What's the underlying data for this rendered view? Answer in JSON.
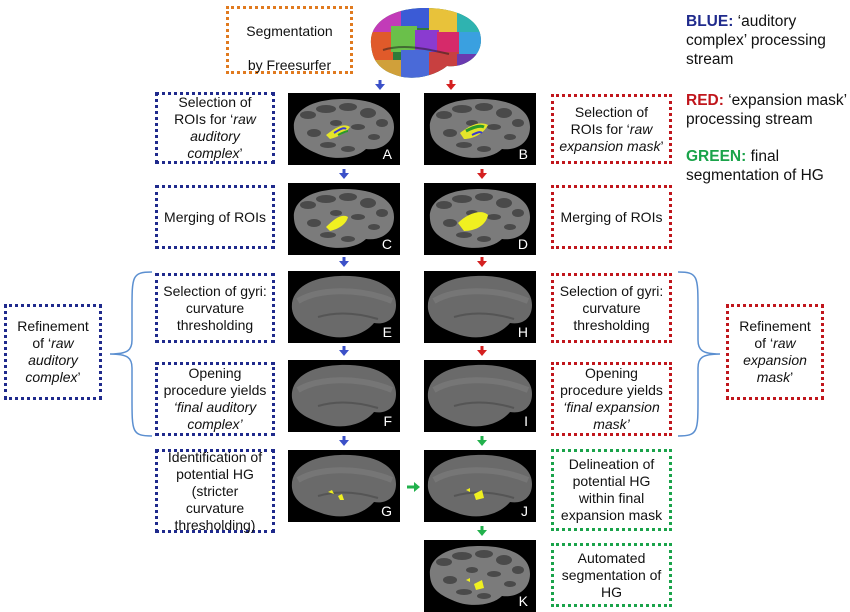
{
  "top_box": {
    "lines": [
      "Segmentation",
      "by Freesurfer"
    ]
  },
  "legend": [
    {
      "key": "BLUE:",
      "text": " ‘auditory complex’ processing stream",
      "color": "#1f2a8c"
    },
    {
      "key": "RED:",
      "text": " ‘expansion mask’ processing stream",
      "color": "#c0161c"
    },
    {
      "key": "GREEN:",
      "text": " final segmentation of HG",
      "color": "#1aa34a"
    }
  ],
  "left_boxes": [
    {
      "pre": "Selection of ROIs for ‘",
      "it": "raw auditory complex",
      "post": "’"
    },
    {
      "pre": "Merging of ROIs",
      "it": "",
      "post": ""
    },
    {
      "pre": "Selection of gyri: curvature thresholding",
      "it": "",
      "post": ""
    },
    {
      "pre": "Opening procedure yields ",
      "it": "‘final auditory complex’",
      "post": ""
    },
    {
      "pre": "Identification of potential HG (stricter curvature thresholding)",
      "it": "",
      "post": ""
    }
  ],
  "right_boxes": [
    {
      "pre": "Selection of ROIs for ‘",
      "it": "raw expansion mask",
      "post": "’"
    },
    {
      "pre": "Merging of ROIs",
      "it": "",
      "post": ""
    },
    {
      "pre": "Selection of gyri: curvature thresholding",
      "it": "",
      "post": ""
    },
    {
      "pre": "Opening procedure yields ",
      "it": "‘final expansion mask’",
      "post": ""
    },
    {
      "pre": "Delineation of potential HG within final expansion mask",
      "it": "",
      "post": ""
    },
    {
      "pre": "Automated segmentation of HG",
      "it": "",
      "post": ""
    }
  ],
  "refinement_left": {
    "pre": "Refinement of ‘",
    "it": "raw auditory complex",
    "post": "’"
  },
  "refinement_right": {
    "pre": "Refinement of ‘",
    "it": "raw expansion mask",
    "post": "’"
  },
  "panels_left": [
    "A",
    "C",
    "E",
    "F",
    "G"
  ],
  "panels_right": [
    "B",
    "D",
    "H",
    "I",
    "J",
    "K"
  ],
  "colors": {
    "blue": "#1f2a8c",
    "red": "#c0161c",
    "green": "#1aa34a",
    "orange": "#e07a1f",
    "arrow_blue": "#3b50c8",
    "arrow_red": "#d42020",
    "arrow_green": "#22b14c"
  }
}
